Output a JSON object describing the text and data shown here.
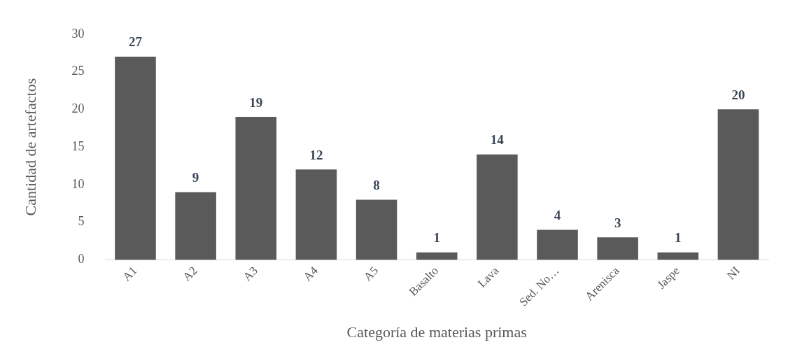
{
  "chart_data": {
    "type": "bar",
    "xlabel": "Categoría de materias primas",
    "ylabel": "Cantidad de artefactos",
    "categories": [
      "A1",
      "A2",
      "A3",
      "A4",
      "A5",
      "Basalto",
      "Lava",
      "Sed. No…",
      "Arenisca",
      "Jaspe",
      "NI"
    ],
    "values": [
      27,
      9,
      19,
      12,
      8,
      1,
      14,
      4,
      3,
      1,
      20
    ],
    "color": "#5a5a5a",
    "ylim": [
      0,
      30
    ],
    "yticks": [
      0,
      5,
      10,
      15,
      20,
      25,
      30
    ],
    "grid": false,
    "legend": false,
    "data_labels": true
  }
}
